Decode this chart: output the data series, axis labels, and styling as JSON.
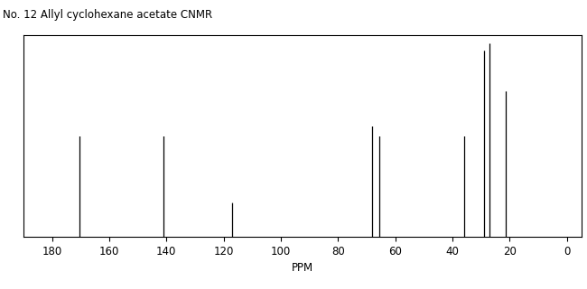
{
  "title": "No. 12 Allyl cyclohexane acetate CNMR",
  "xlabel": "PPM",
  "xlim": [
    190,
    -5
  ],
  "ylim": [
    0,
    1.0
  ],
  "xticks": [
    180,
    160,
    140,
    120,
    100,
    80,
    60,
    40,
    20,
    0
  ],
  "peaks": [
    {
      "ppm": 170.5,
      "intensity": 0.5
    },
    {
      "ppm": 141.0,
      "intensity": 0.5
    },
    {
      "ppm": 117.0,
      "intensity": 0.17
    },
    {
      "ppm": 68.0,
      "intensity": 0.55
    },
    {
      "ppm": 65.5,
      "intensity": 0.5
    },
    {
      "ppm": 36.0,
      "intensity": 0.5
    },
    {
      "ppm": 28.8,
      "intensity": 0.92
    },
    {
      "ppm": 27.0,
      "intensity": 0.96
    },
    {
      "ppm": 21.5,
      "intensity": 0.72
    }
  ],
  "line_color": "#000000",
  "bg_color": "#ffffff",
  "title_fontsize": 8.5,
  "axis_label_fontsize": 8.5,
  "tick_fontsize": 8.5
}
